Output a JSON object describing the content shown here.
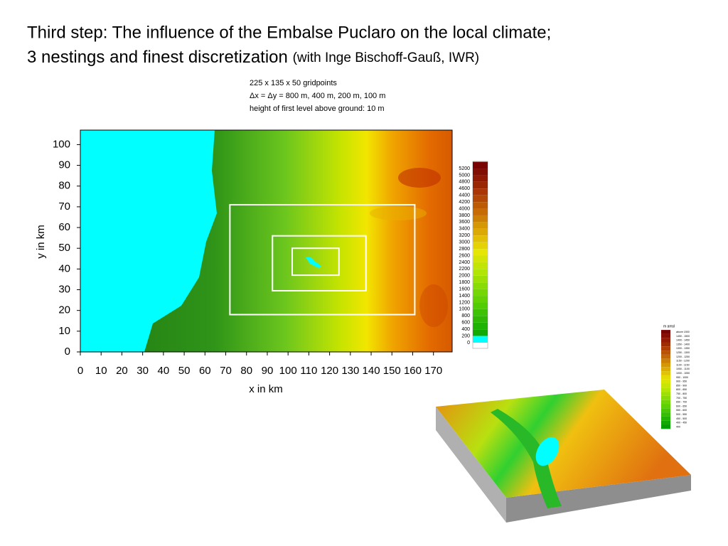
{
  "title": {
    "line1": "Third step: The influence of the Embalse Puclaro on the local climate;",
    "line2": "3 nestings and finest discretization",
    "line2_note": "(with Inge Bischoff-Gauß, IWR)"
  },
  "info": [
    "225 x 135 x 50 gridpoints",
    "Δx = Δy = 800 m, 400 m, 200 m, 100 m",
    "height of first level above ground: 10 m"
  ],
  "chart_data": {
    "type": "map",
    "xlabel": "x in km",
    "ylabel": "y in km",
    "xlim": [
      0,
      179
    ],
    "ylim": [
      0,
      107
    ],
    "xticks": [
      0,
      10,
      20,
      30,
      40,
      50,
      60,
      70,
      80,
      90,
      100,
      110,
      120,
      130,
      140,
      150,
      160,
      170
    ],
    "yticks": [
      0,
      10,
      20,
      30,
      40,
      50,
      60,
      70,
      80,
      90,
      100
    ],
    "nests": [
      {
        "xlim": [
          72,
          161
        ],
        "ylim": [
          18,
          71
        ]
      },
      {
        "xlim": [
          92.5,
          137.5
        ],
        "ylim": [
          29.5,
          56
        ]
      },
      {
        "xlim": [
          102,
          124.5
        ],
        "ylim": [
          37,
          50
        ]
      }
    ],
    "colorbar": [
      5200,
      5000,
      4800,
      4600,
      4400,
      4200,
      4000,
      3800,
      3600,
      3400,
      3200,
      3000,
      2800,
      2600,
      2400,
      2200,
      2000,
      1800,
      1600,
      1400,
      1200,
      1000,
      800,
      600,
      400,
      200,
      0
    ]
  },
  "legend3d": {
    "title": "m amsl",
    "labels": [
      "above 1500",
      "1450 - 1500",
      "1400 - 1450",
      "1350 - 1400",
      "1300 - 1350",
      "1250 - 1300",
      "1200 - 1250",
      "1150 - 1200",
      "1100 - 1150",
      "1050 - 1100",
      "1000 - 1050",
      "950 - 1000",
      "900 - 950",
      "850 - 900",
      "800 - 850",
      "750 - 800",
      "700 - 750",
      "650 - 700",
      "600 - 650",
      "550 - 600",
      "500 - 550",
      "450 - 500",
      "400 - 450",
      "400"
    ]
  }
}
